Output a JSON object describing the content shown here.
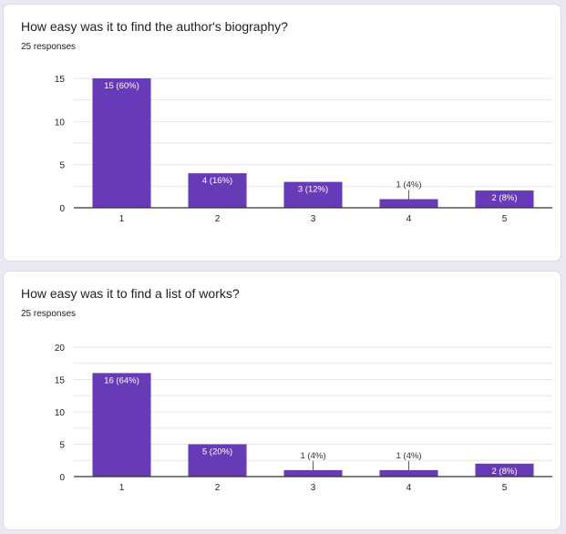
{
  "questions": [
    {
      "title": "How easy was it to find the author's biography?",
      "responses": "25 responses"
    },
    {
      "title": "How easy was it to find a list of works?",
      "responses": "25 responses"
    }
  ],
  "colors": {
    "bar": "#673ab7",
    "grid": "#e6e6e6",
    "axis": "#333333",
    "label_inside": "#ffffff",
    "label_outside": "#333333",
    "tick_text": "#222222"
  },
  "chart_data": [
    {
      "type": "bar",
      "categories": [
        "1",
        "2",
        "3",
        "4",
        "5"
      ],
      "values": [
        15,
        4,
        3,
        1,
        2
      ],
      "data_labels": [
        "15 (60%)",
        "4 (16%)",
        "3 (12%)",
        "1 (4%)",
        "2 (8%)"
      ],
      "ylim": [
        0,
        15
      ],
      "yticks": [
        0,
        5,
        10,
        15
      ],
      "grid": true
    },
    {
      "type": "bar",
      "categories": [
        "1",
        "2",
        "3",
        "4",
        "5"
      ],
      "values": [
        16,
        5,
        1,
        1,
        2
      ],
      "data_labels": [
        "16 (64%)",
        "5 (20%)",
        "1 (4%)",
        "1 (4%)",
        "2 (8%)"
      ],
      "ylim": [
        0,
        20
      ],
      "yticks": [
        0,
        5,
        10,
        15,
        20
      ],
      "grid": true
    }
  ]
}
